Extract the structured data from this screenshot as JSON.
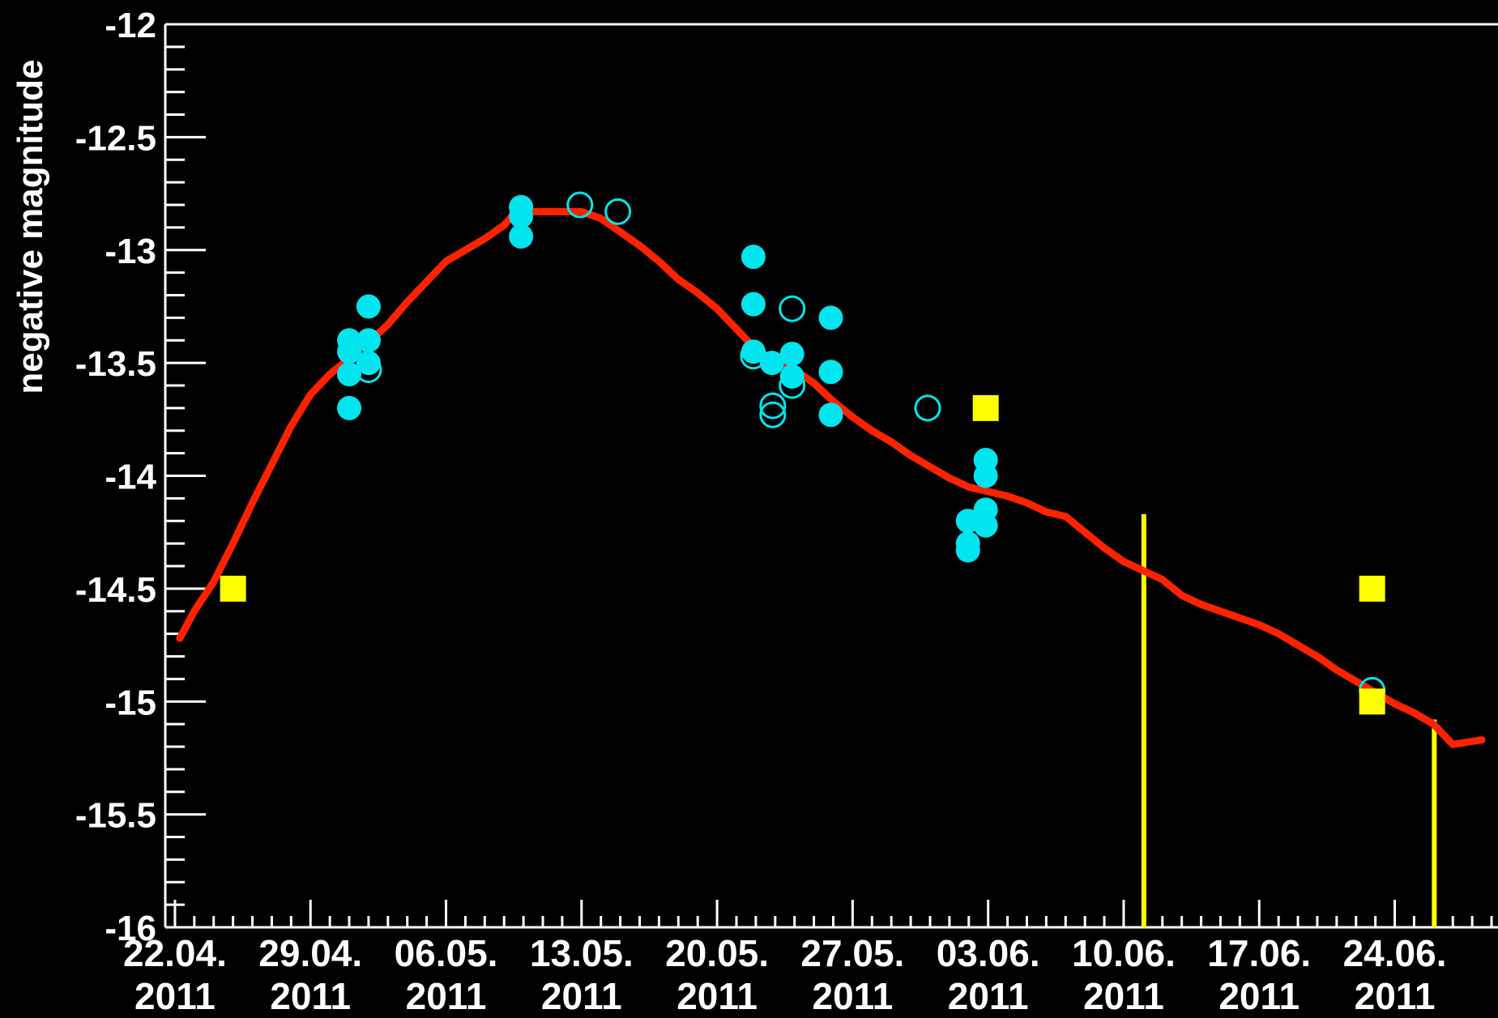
{
  "chart_data": {
    "type": "scatter",
    "title": "",
    "xlabel": "",
    "ylabel": "negative magnitude",
    "ylim": [
      -16,
      -12
    ],
    "y_axis_direction": "-12 at top, -16 at bottom",
    "grid": false,
    "background": "#000000",
    "x_ticks": [
      {
        "date": "2011-04-22",
        "line1": "22.04.",
        "line2": "2011"
      },
      {
        "date": "2011-04-29",
        "line1": "29.04.",
        "line2": "2011"
      },
      {
        "date": "2011-05-06",
        "line1": "06.05.",
        "line2": "2011"
      },
      {
        "date": "2011-05-13",
        "line1": "13.05.",
        "line2": "2011"
      },
      {
        "date": "2011-05-20",
        "line1": "20.05.",
        "line2": "2011"
      },
      {
        "date": "2011-05-27",
        "line1": "27.05.",
        "line2": "2011"
      },
      {
        "date": "2011-06-03",
        "line1": "03.06.",
        "line2": "2011"
      },
      {
        "date": "2011-06-10",
        "line1": "10.06.",
        "line2": "2011"
      },
      {
        "date": "2011-06-17",
        "line1": "17.06.",
        "line2": "2011"
      },
      {
        "date": "2011-06-24",
        "line1": "24.06.",
        "line2": "2011"
      }
    ],
    "xlim": [
      "2011-04-21T12:00",
      "2011-06-29T08:00"
    ],
    "y_ticks": [
      "-12",
      "-12.5",
      "-13",
      "-13.5",
      "-14",
      "-14.5",
      "-15",
      "-15.5",
      "-16"
    ],
    "series": [
      {
        "marker": "filled-circle",
        "color": "#00e5ee",
        "points": [
          {
            "x": "2011-05-01T00:00",
            "y": -13.4
          },
          {
            "x": "2011-05-01T00:00",
            "y": -13.45
          },
          {
            "x": "2011-05-01T00:00",
            "y": -13.55
          },
          {
            "x": "2011-05-01T00:00",
            "y": -13.7
          },
          {
            "x": "2011-05-02T00:00",
            "y": -13.25
          },
          {
            "x": "2011-05-02T00:00",
            "y": -13.4
          },
          {
            "x": "2011-05-02T00:00",
            "y": -13.5
          },
          {
            "x": "2011-05-09T21:00",
            "y": -12.81
          },
          {
            "x": "2011-05-09T21:00",
            "y": -12.85
          },
          {
            "x": "2011-05-09T21:00",
            "y": -12.94
          },
          {
            "x": "2011-05-21T21:00",
            "y": -13.03
          },
          {
            "x": "2011-05-21T21:00",
            "y": -13.24
          },
          {
            "x": "2011-05-21T21:00",
            "y": -13.45
          },
          {
            "x": "2011-05-22T20:00",
            "y": -13.5
          },
          {
            "x": "2011-05-23T21:00",
            "y": -13.46
          },
          {
            "x": "2011-05-23T21:00",
            "y": -13.56
          },
          {
            "x": "2011-05-25T21:00",
            "y": -13.3
          },
          {
            "x": "2011-05-25T21:00",
            "y": -13.54
          },
          {
            "x": "2011-05-25T21:00",
            "y": -13.73
          },
          {
            "x": "2011-06-01T23:00",
            "y": -14.2
          },
          {
            "x": "2011-06-01T23:00",
            "y": -14.3
          },
          {
            "x": "2011-06-01T23:00",
            "y": -14.33
          },
          {
            "x": "2011-06-02T21:00",
            "y": -13.93
          },
          {
            "x": "2011-06-02T21:00",
            "y": -14.0
          },
          {
            "x": "2011-06-02T21:00",
            "y": -14.15
          },
          {
            "x": "2011-06-02T21:00",
            "y": -14.22
          }
        ]
      },
      {
        "marker": "open-circle",
        "color": "#00e5ee",
        "points": [
          {
            "x": "2011-05-02T00:00",
            "y": -13.53
          },
          {
            "x": "2011-05-12T22:00",
            "y": -12.8
          },
          {
            "x": "2011-05-14T21:00",
            "y": -12.83
          },
          {
            "x": "2011-05-21T21:00",
            "y": -13.47
          },
          {
            "x": "2011-05-22T21:00",
            "y": -13.69
          },
          {
            "x": "2011-05-22T21:00",
            "y": -13.73
          },
          {
            "x": "2011-05-23T21:00",
            "y": -13.26
          },
          {
            "x": "2011-05-23T21:00",
            "y": -13.6
          },
          {
            "x": "2011-05-30T21:00",
            "y": -13.7
          },
          {
            "x": "2011-06-22T20:00",
            "y": -14.95
          }
        ]
      },
      {
        "marker": "filled-square",
        "color": "#ffff00",
        "points": [
          {
            "x": "2011-04-25T00:00",
            "y": -14.5
          },
          {
            "x": "2011-06-02T21:00",
            "y": -13.7
          },
          {
            "x": "2011-06-22T20:00",
            "y": -14.5
          },
          {
            "x": "2011-06-22T20:00",
            "y": -15.0
          }
        ]
      },
      {
        "marker": "line",
        "color": "#ff2200",
        "points": [
          {
            "x": "2011-04-22T06:00",
            "y": -14.72
          },
          {
            "x": "2011-04-23T00:00",
            "y": -14.6
          },
          {
            "x": "2011-04-24T00:00",
            "y": -14.47
          },
          {
            "x": "2011-04-25T00:00",
            "y": -14.3
          },
          {
            "x": "2011-04-26T00:00",
            "y": -14.12
          },
          {
            "x": "2011-04-27T00:00",
            "y": -13.95
          },
          {
            "x": "2011-04-28T00:00",
            "y": -13.78
          },
          {
            "x": "2011-04-29T00:00",
            "y": -13.64
          },
          {
            "x": "2011-04-30T00:00",
            "y": -13.55
          },
          {
            "x": "2011-05-01T00:00",
            "y": -13.48
          },
          {
            "x": "2011-05-02T00:00",
            "y": -13.41
          },
          {
            "x": "2011-05-03T00:00",
            "y": -13.33
          },
          {
            "x": "2011-05-04T00:00",
            "y": -13.23
          },
          {
            "x": "2011-05-05T00:00",
            "y": -13.14
          },
          {
            "x": "2011-05-06T00:00",
            "y": -13.05
          },
          {
            "x": "2011-05-07T00:00",
            "y": -13.0
          },
          {
            "x": "2011-05-08T00:00",
            "y": -12.95
          },
          {
            "x": "2011-05-09T00:00",
            "y": -12.89
          },
          {
            "x": "2011-05-09T12:00",
            "y": -12.84
          },
          {
            "x": "2011-05-10T00:00",
            "y": -12.83
          },
          {
            "x": "2011-05-13T00:00",
            "y": -12.83
          },
          {
            "x": "2011-05-14T00:00",
            "y": -12.86
          },
          {
            "x": "2011-05-15T00:00",
            "y": -12.92
          },
          {
            "x": "2011-05-16T00:00",
            "y": -12.98
          },
          {
            "x": "2011-05-17T00:00",
            "y": -13.05
          },
          {
            "x": "2011-05-18T00:00",
            "y": -13.13
          },
          {
            "x": "2011-05-19T00:00",
            "y": -13.19
          },
          {
            "x": "2011-05-20T00:00",
            "y": -13.26
          },
          {
            "x": "2011-05-21T00:00",
            "y": -13.35
          },
          {
            "x": "2011-05-22T00:00",
            "y": -13.44
          },
          {
            "x": "2011-05-23T00:00",
            "y": -13.49
          },
          {
            "x": "2011-05-24T00:00",
            "y": -13.53
          },
          {
            "x": "2011-05-25T00:00",
            "y": -13.59
          },
          {
            "x": "2011-05-26T00:00",
            "y": -13.67
          },
          {
            "x": "2011-05-27T00:00",
            "y": -13.74
          },
          {
            "x": "2011-05-28T00:00",
            "y": -13.8
          },
          {
            "x": "2011-05-29T00:00",
            "y": -13.85
          },
          {
            "x": "2011-05-30T00:00",
            "y": -13.91
          },
          {
            "x": "2011-05-31T00:00",
            "y": -13.96
          },
          {
            "x": "2011-06-01T00:00",
            "y": -14.01
          },
          {
            "x": "2011-06-02T00:00",
            "y": -14.05
          },
          {
            "x": "2011-06-03T00:00",
            "y": -14.07
          },
          {
            "x": "2011-06-04T00:00",
            "y": -14.09
          },
          {
            "x": "2011-06-05T00:00",
            "y": -14.12
          },
          {
            "x": "2011-06-06T00:00",
            "y": -14.16
          },
          {
            "x": "2011-06-07T00:00",
            "y": -14.18
          },
          {
            "x": "2011-06-08T00:00",
            "y": -14.25
          },
          {
            "x": "2011-06-09T00:00",
            "y": -14.32
          },
          {
            "x": "2011-06-10T00:00",
            "y": -14.38
          },
          {
            "x": "2011-06-11T00:00",
            "y": -14.42
          },
          {
            "x": "2011-06-12T00:00",
            "y": -14.46
          },
          {
            "x": "2011-06-13T00:00",
            "y": -14.53
          },
          {
            "x": "2011-06-14T00:00",
            "y": -14.57
          },
          {
            "x": "2011-06-15T00:00",
            "y": -14.6
          },
          {
            "x": "2011-06-16T00:00",
            "y": -14.63
          },
          {
            "x": "2011-06-17T00:00",
            "y": -14.66
          },
          {
            "x": "2011-06-18T00:00",
            "y": -14.7
          },
          {
            "x": "2011-06-19T00:00",
            "y": -14.75
          },
          {
            "x": "2011-06-20T00:00",
            "y": -14.8
          },
          {
            "x": "2011-06-21T00:00",
            "y": -14.86
          },
          {
            "x": "2011-06-22T00:00",
            "y": -14.91
          },
          {
            "x": "2011-06-23T00:00",
            "y": -14.96
          },
          {
            "x": "2011-06-24T00:00",
            "y": -15.01
          },
          {
            "x": "2011-06-25T00:00",
            "y": -15.05
          },
          {
            "x": "2011-06-26T00:00",
            "y": -15.1
          },
          {
            "x": "2011-06-27T00:00",
            "y": -15.19
          },
          {
            "x": "2011-06-28T12:00",
            "y": -15.17
          }
        ]
      },
      {
        "marker": "vertical-line",
        "color": "#ffff00",
        "segments": [
          {
            "x": "2011-06-11T01:00",
            "y_from": -14.17,
            "y_to": -16
          },
          {
            "x": "2011-06-26T01:00",
            "y_from": -15.08,
            "y_to": -16
          }
        ]
      }
    ]
  }
}
